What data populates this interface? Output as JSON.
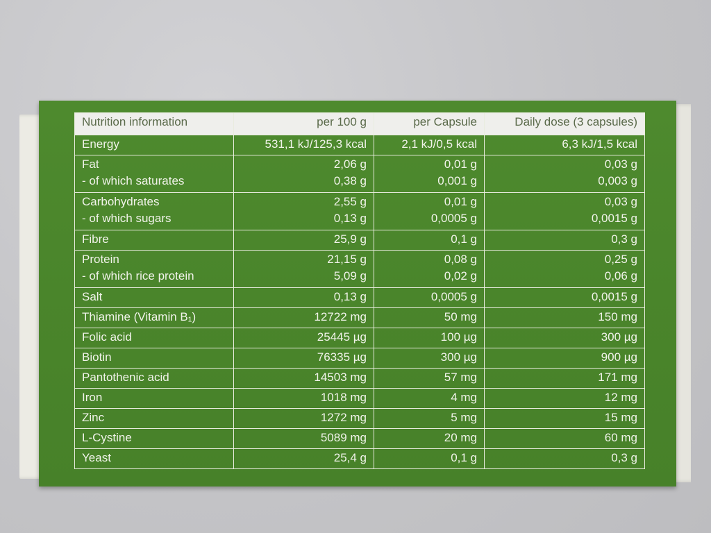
{
  "colors": {
    "box_green": "#4c872d",
    "header_bg": "#efefec",
    "text": "#f1f3ea"
  },
  "table": {
    "headers": [
      "Nutrition information",
      "per 100 g",
      "per Capsule",
      "Daily dose (3 capsules)"
    ],
    "rows": [
      {
        "label": [
          "Energy"
        ],
        "per100g": [
          "531,1 kJ/125,3 kcal"
        ],
        "perCapsule": [
          "2,1 kJ/0,5 kcal"
        ],
        "daily": [
          "6,3 kJ/1,5 kcal"
        ]
      },
      {
        "label": [
          "Fat",
          "- of which saturates"
        ],
        "per100g": [
          "2,06 g",
          "0,38 g"
        ],
        "perCapsule": [
          "0,01 g",
          "0,001 g"
        ],
        "daily": [
          "0,03 g",
          "0,003 g"
        ]
      },
      {
        "label": [
          "Carbohydrates",
          "- of which sugars"
        ],
        "per100g": [
          "2,55 g",
          "0,13 g"
        ],
        "perCapsule": [
          "0,01 g",
          "0,0005 g"
        ],
        "daily": [
          "0,03 g",
          "0,0015 g"
        ]
      },
      {
        "label": [
          "Fibre"
        ],
        "per100g": [
          "25,9 g"
        ],
        "perCapsule": [
          "0,1 g"
        ],
        "daily": [
          "0,3 g"
        ]
      },
      {
        "label": [
          "Protein",
          "- of which rice protein"
        ],
        "per100g": [
          "21,15 g",
          "5,09 g"
        ],
        "perCapsule": [
          "0,08 g",
          "0,02 g"
        ],
        "daily": [
          "0,25 g",
          "0,06 g"
        ]
      },
      {
        "label": [
          "Salt"
        ],
        "per100g": [
          "0,13 g"
        ],
        "perCapsule": [
          "0,0005 g"
        ],
        "daily": [
          "0,0015 g"
        ]
      },
      {
        "label": [
          "Thiamine (Vitamin B₁)"
        ],
        "per100g": [
          "12722 mg"
        ],
        "perCapsule": [
          "50 mg"
        ],
        "daily": [
          "150 mg"
        ]
      },
      {
        "label": [
          "Folic acid"
        ],
        "per100g": [
          "25445 µg"
        ],
        "perCapsule": [
          "100 µg"
        ],
        "daily": [
          "300 µg"
        ]
      },
      {
        "label": [
          "Biotin"
        ],
        "per100g": [
          "76335 µg"
        ],
        "perCapsule": [
          "300 µg"
        ],
        "daily": [
          "900 µg"
        ]
      },
      {
        "label": [
          "Pantothenic acid"
        ],
        "per100g": [
          "14503 mg"
        ],
        "perCapsule": [
          "57 mg"
        ],
        "daily": [
          "171 mg"
        ]
      },
      {
        "label": [
          "Iron"
        ],
        "per100g": [
          "1018 mg"
        ],
        "perCapsule": [
          "4 mg"
        ],
        "daily": [
          "12 mg"
        ]
      },
      {
        "label": [
          "Zinc"
        ],
        "per100g": [
          "1272 mg"
        ],
        "perCapsule": [
          "5 mg"
        ],
        "daily": [
          "15 mg"
        ]
      },
      {
        "label": [
          "L-Cystine"
        ],
        "per100g": [
          "5089 mg"
        ],
        "perCapsule": [
          "20 mg"
        ],
        "daily": [
          "60 mg"
        ]
      },
      {
        "label": [
          "Yeast"
        ],
        "per100g": [
          "25,4 g"
        ],
        "perCapsule": [
          "0,1 g"
        ],
        "daily": [
          "0,3 g"
        ]
      }
    ]
  }
}
